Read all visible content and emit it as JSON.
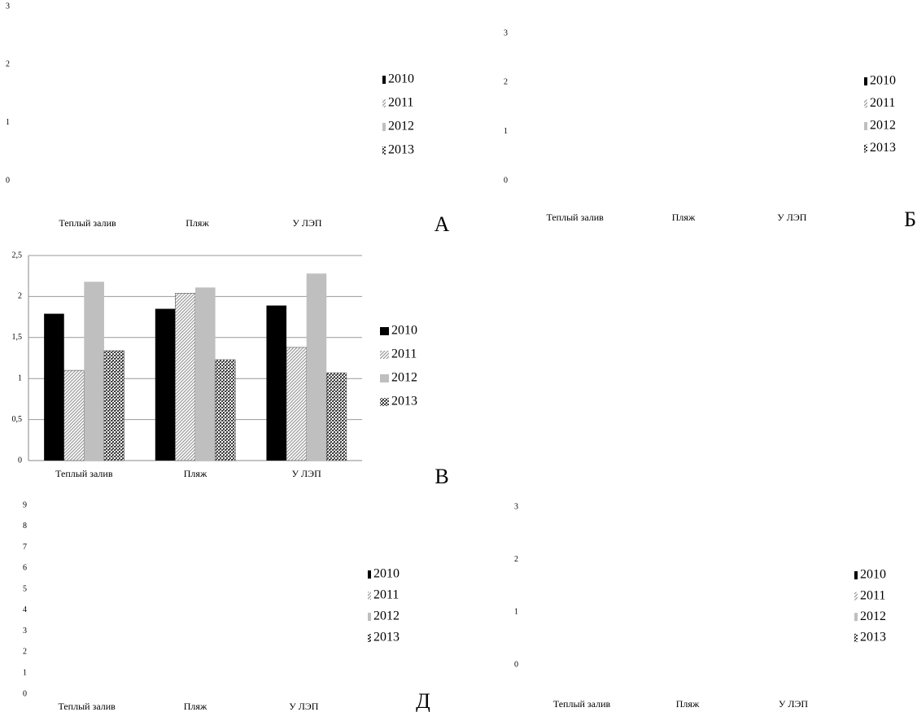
{
  "chart_data": [
    {
      "type": "bar",
      "label": "А",
      "categories": [
        "Теплый залив",
        "Пляж",
        "У ЛЭП"
      ],
      "ylim": [
        0,
        3
      ],
      "yticks": [
        0,
        1,
        2,
        3
      ],
      "grid": false,
      "series": [
        {
          "name": "2010",
          "color": "#000000",
          "pattern": "solid"
        },
        {
          "name": "2011",
          "color": "#9a9a9a",
          "pattern": "diagonal"
        },
        {
          "name": "2012",
          "color": "#bfbfbf",
          "pattern": "solid"
        },
        {
          "name": "2013",
          "color": "#444444",
          "pattern": "dots"
        }
      ]
    },
    {
      "type": "bar",
      "label": "Б",
      "categories": [
        "Теплый залив",
        "Пляж",
        "У ЛЭП"
      ],
      "ylim": [
        0,
        3
      ],
      "yticks": [
        0,
        1,
        2,
        3
      ],
      "grid": false,
      "series": [
        {
          "name": "2010",
          "color": "#000000",
          "pattern": "solid"
        },
        {
          "name": "2011",
          "color": "#9a9a9a",
          "pattern": "diagonal"
        },
        {
          "name": "2012",
          "color": "#bfbfbf",
          "pattern": "solid"
        },
        {
          "name": "2013",
          "color": "#444444",
          "pattern": "dots"
        }
      ]
    },
    {
      "type": "bar",
      "label": "В",
      "categories": [
        "Теплый залив",
        "Пляж",
        "У ЛЭП"
      ],
      "ylim": [
        0,
        2.5
      ],
      "yticks": [
        0,
        {
          "value": 0.5,
          "label": "0,5"
        },
        1,
        {
          "value": 1.5,
          "label": "1,5"
        },
        2,
        {
          "value": 2.5,
          "label": "2,5"
        }
      ],
      "grid": true,
      "series": [
        {
          "name": "2010",
          "color": "#000000",
          "pattern": "solid",
          "values": [
            1.79,
            1.85,
            1.89
          ]
        },
        {
          "name": "2011",
          "color": "#9a9a9a",
          "pattern": "diagonal",
          "values": [
            1.1,
            2.04,
            1.38
          ]
        },
        {
          "name": "2012",
          "color": "#bfbfbf",
          "pattern": "solid",
          "values": [
            2.18,
            2.11,
            2.28
          ]
        },
        {
          "name": "2013",
          "color": "#444444",
          "pattern": "dots",
          "values": [
            1.34,
            1.23,
            1.07
          ]
        }
      ]
    },
    {
      "type": "bar",
      "label": "Д",
      "categories": [
        "Теплый залив",
        "Пляж",
        "У ЛЭП"
      ],
      "ylim": [
        0,
        9
      ],
      "yticks": [
        0,
        1,
        2,
        3,
        4,
        5,
        6,
        7,
        8,
        9
      ],
      "grid": false,
      "series": [
        {
          "name": "2010",
          "color": "#000000",
          "pattern": "solid"
        },
        {
          "name": "2011",
          "color": "#9a9a9a",
          "pattern": "diagonal"
        },
        {
          "name": "2012",
          "color": "#bfbfbf",
          "pattern": "solid"
        },
        {
          "name": "2013",
          "color": "#444444",
          "pattern": "dots"
        }
      ]
    },
    {
      "type": "bar",
      "categories": [
        "Теплый залив",
        "Пляж",
        "У ЛЭП"
      ],
      "ylim": [
        0,
        3
      ],
      "yticks": [
        0,
        1,
        2,
        3
      ],
      "grid": false,
      "series": [
        {
          "name": "2010",
          "color": "#000000",
          "pattern": "solid"
        },
        {
          "name": "2011",
          "color": "#9a9a9a",
          "pattern": "diagonal"
        },
        {
          "name": "2012",
          "color": "#bfbfbf",
          "pattern": "solid"
        },
        {
          "name": "2013",
          "color": "#444444",
          "pattern": "dots"
        }
      ]
    }
  ]
}
